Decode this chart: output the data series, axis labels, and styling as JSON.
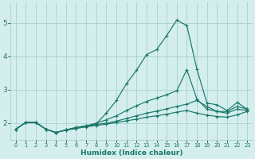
{
  "xlabel": "Humidex (Indice chaleur)",
  "bg_color": "#d4eeee",
  "grid_color": "#aed4d4",
  "line_color": "#1a7868",
  "xlim": [
    -0.5,
    23.5
  ],
  "ylim": [
    1.5,
    5.6
  ],
  "xticks": [
    0,
    1,
    2,
    3,
    4,
    5,
    6,
    7,
    8,
    9,
    10,
    11,
    12,
    13,
    14,
    15,
    16,
    17,
    18,
    19,
    20,
    21,
    22,
    23
  ],
  "yticks": [
    2,
    3,
    4,
    5
  ],
  "series": [
    {
      "x": [
        0,
        1,
        2,
        3,
        4,
        5,
        6,
        7,
        8,
        9,
        10,
        11,
        12,
        13,
        14,
        15,
        16,
        17,
        18,
        19,
        20,
        21,
        22,
        23
      ],
      "y": [
        1.82,
        2.02,
        2.02,
        1.82,
        1.72,
        1.8,
        1.87,
        1.92,
        1.98,
        2.3,
        2.68,
        3.18,
        3.58,
        4.05,
        4.2,
        4.62,
        5.08,
        4.92,
        3.62,
        2.6,
        2.55,
        2.38,
        2.62,
        2.42
      ]
    },
    {
      "x": [
        0,
        1,
        2,
        3,
        4,
        5,
        6,
        7,
        8,
        9,
        10,
        11,
        12,
        13,
        14,
        15,
        16,
        17,
        18,
        19,
        20,
        21,
        22,
        23
      ],
      "y": [
        1.82,
        2.02,
        2.02,
        1.82,
        1.72,
        1.8,
        1.87,
        1.92,
        2.0,
        2.1,
        2.22,
        2.38,
        2.52,
        2.65,
        2.75,
        2.85,
        2.97,
        3.6,
        2.72,
        2.42,
        2.35,
        2.3,
        2.42,
        2.38
      ]
    },
    {
      "x": [
        0,
        1,
        2,
        3,
        4,
        5,
        6,
        7,
        8,
        9,
        10,
        11,
        12,
        13,
        14,
        15,
        16,
        17,
        18,
        19,
        20,
        21,
        22,
        23
      ],
      "y": [
        1.82,
        2.02,
        2.02,
        1.82,
        1.72,
        1.8,
        1.86,
        1.91,
        1.96,
        2.0,
        2.06,
        2.14,
        2.22,
        2.3,
        2.36,
        2.43,
        2.5,
        2.57,
        2.68,
        2.5,
        2.35,
        2.35,
        2.5,
        2.42
      ]
    },
    {
      "x": [
        0,
        1,
        2,
        3,
        4,
        5,
        6,
        7,
        8,
        9,
        10,
        11,
        12,
        13,
        14,
        15,
        16,
        17,
        18,
        19,
        20,
        21,
        22,
        23
      ],
      "y": [
        1.82,
        2.02,
        2.02,
        1.82,
        1.72,
        1.79,
        1.84,
        1.89,
        1.93,
        1.97,
        2.02,
        2.07,
        2.12,
        2.18,
        2.22,
        2.27,
        2.33,
        2.38,
        2.3,
        2.24,
        2.2,
        2.18,
        2.25,
        2.35
      ]
    }
  ]
}
